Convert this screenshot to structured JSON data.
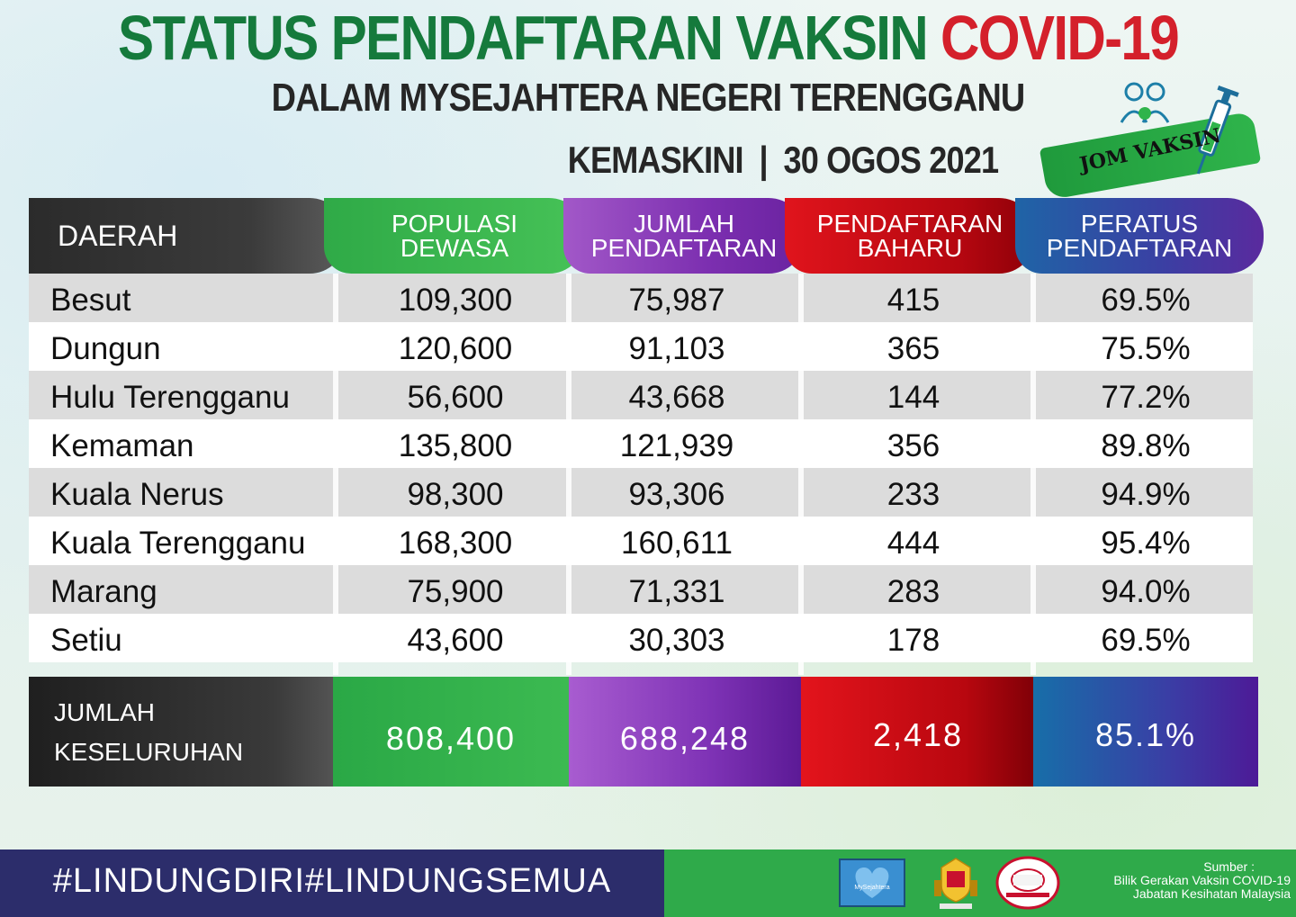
{
  "title": {
    "main": "STATUS PENDAFTARAN VAKSIN",
    "highlight": "COVID-19",
    "subtitle": "DALAM MYSEJAHTERA NEGERI TERENGGANU",
    "updated_label": "KEMASKINI",
    "updated_sep": "|",
    "updated_date": "30 OGOS 2021"
  },
  "badge": {
    "text": "JOM VAKSIN",
    "icons": [
      "family-icon",
      "syringe-icon"
    ]
  },
  "table": {
    "headers": {
      "daerah": "DAERAH",
      "populasi": [
        "POPULASI",
        "DEWASA"
      ],
      "jumlah": [
        "JUMLAH",
        "PENDAFTARAN"
      ],
      "baharu": [
        "PENDAFTARAN",
        "BAHARU"
      ],
      "peratus": [
        "PERATUS",
        "PENDAFTARAN"
      ]
    },
    "rows": [
      {
        "daerah": "Besut",
        "populasi": "109,300",
        "jumlah": "75,987",
        "baharu": "415",
        "peratus": "69.5%"
      },
      {
        "daerah": "Dungun",
        "populasi": "120,600",
        "jumlah": "91,103",
        "baharu": "365",
        "peratus": "75.5%"
      },
      {
        "daerah": "Hulu Terengganu",
        "populasi": "56,600",
        "jumlah": "43,668",
        "baharu": "144",
        "peratus": "77.2%"
      },
      {
        "daerah": "Kemaman",
        "populasi": "135,800",
        "jumlah": "121,939",
        "baharu": "356",
        "peratus": "89.8%"
      },
      {
        "daerah": "Kuala Nerus",
        "populasi": "98,300",
        "jumlah": "93,306",
        "baharu": "233",
        "peratus": "94.9%"
      },
      {
        "daerah": "Kuala Terengganu",
        "populasi": "168,300",
        "jumlah": "160,611",
        "baharu": "444",
        "peratus": "95.4%"
      },
      {
        "daerah": "Marang",
        "populasi": "75,900",
        "jumlah": "71,331",
        "baharu": "283",
        "peratus": "94.0%"
      },
      {
        "daerah": "Setiu",
        "populasi": "43,600",
        "jumlah": "30,303",
        "baharu": "178",
        "peratus": "69.5%"
      }
    ],
    "total": {
      "label": [
        "JUMLAH",
        "KESELURUHAN"
      ],
      "populasi": "808,400",
      "jumlah": "688,248",
      "baharu": "2,418",
      "peratus": "85.1%"
    }
  },
  "footer": {
    "hashtag": "#LINDUNGDIRI#LINDUNGSEMUA",
    "logos": [
      "mysejahtera-logo",
      "kkm-crest-logo",
      "jkn-logo"
    ],
    "mysejahtera_text": "MySejahtera",
    "source_label": "Sumber :",
    "source_line1": "Bilik Gerakan Vaksin COVID-19",
    "source_line2": "Jabatan Kesihatan Malaysia"
  },
  "colors": {
    "title_green": "#157a3c",
    "title_red": "#d4202b",
    "green": "#2faa47",
    "purple": "#7c2fb0",
    "red": "#d0101a",
    "blue_violet": "#3b3fa3",
    "footer_navy": "#2c2d6b"
  }
}
